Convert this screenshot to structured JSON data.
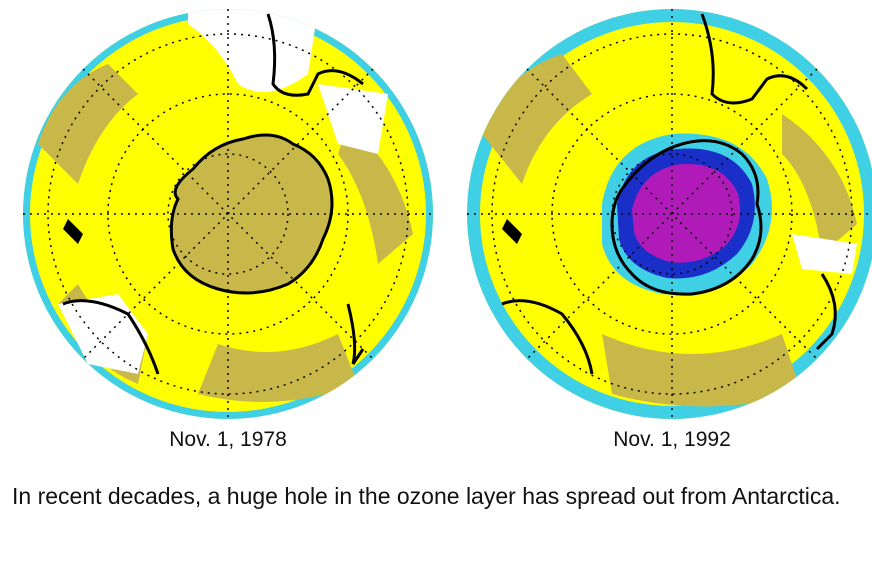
{
  "maps": [
    {
      "caption": "Nov. 1, 1978"
    },
    {
      "caption": "Nov. 1, 1992"
    }
  ],
  "description": "In recent decades, a huge hole in the ozone layer has spread out from Antarctica.",
  "colors": {
    "ozone_high": "#ffff00",
    "ozone_mid": "#c8b84a",
    "ozone_low": "#3fd0e6",
    "ozone_lower": "#1a2fc8",
    "ozone_lowest": "#b01ab8",
    "no_data": "#ffffff",
    "coastline": "#000000"
  }
}
